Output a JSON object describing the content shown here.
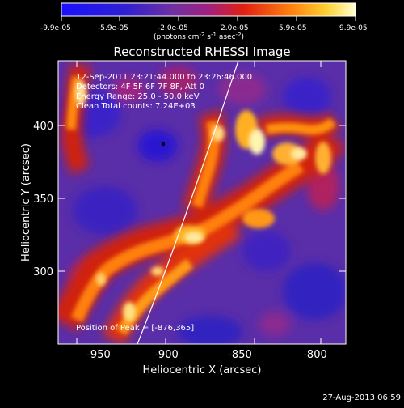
{
  "colorbar": {
    "ticks": [
      "-9.9e-05",
      "-5.9e-05",
      "-2.0e-05",
      "2.0e-05",
      "5.9e-05",
      "9.9e-05"
    ],
    "unit_label": "(photons cm",
    "unit_sup1": "-2",
    "unit_mid": " s",
    "unit_sup2": "-1",
    "unit_end": " asec",
    "unit_sup3": "-2",
    "unit_close": ")"
  },
  "plot": {
    "title": "Reconstructed RHESSI Image",
    "xlabel": "Heliocentric X (arcsec)",
    "ylabel": "Heliocentric Y (arcsec)",
    "x_ticks": [
      "-950",
      "-900",
      "-850",
      "-800"
    ],
    "y_ticks": [
      "400",
      "350",
      "300"
    ],
    "info": [
      "12-Sep-2011 23:21:44.000 to 23:26:46.000",
      "Detectors: 4F 5F 6F 7F 8F, Att 0",
      "Energy Range: 25.0 - 50.0 keV",
      "Clean    Total counts: 7.24E+03"
    ],
    "peak_label": "Position of Peak = [-876,365]"
  },
  "footer": {
    "timestamp": "27-Aug-2013 06:59"
  },
  "colors": {
    "background": "#000000",
    "low": "#1010c0",
    "mid_low": "#7a3aa0",
    "mid": "#9040a0",
    "hot": "#e03010",
    "warm": "#f0a020",
    "peak": "#fff6c0"
  }
}
